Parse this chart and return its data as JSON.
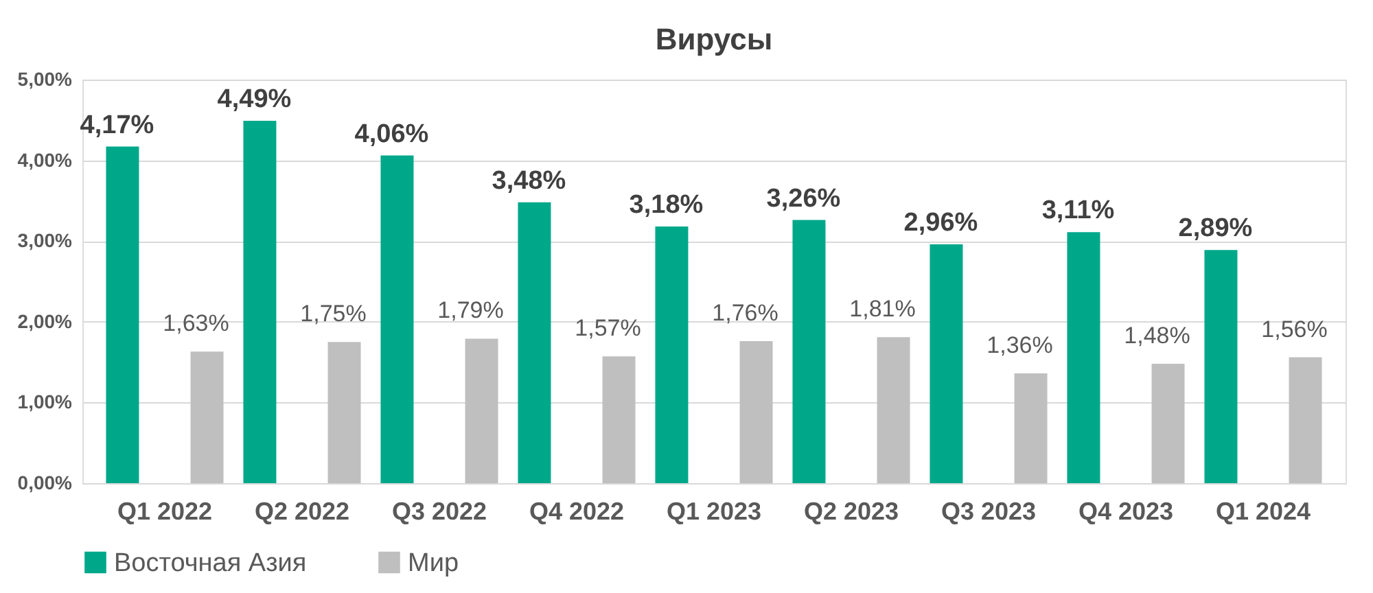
{
  "chart_data": {
    "type": "bar",
    "title": "Вирусы",
    "categories": [
      "Q1 2022",
      "Q2 2022",
      "Q3 2022",
      "Q4 2022",
      "Q1 2023",
      "Q2 2023",
      "Q3 2023",
      "Q4 2023",
      "Q1 2024"
    ],
    "series": [
      {
        "name": "Восточная Азия",
        "color": "#00a88a",
        "values": [
          4.17,
          4.49,
          4.06,
          3.48,
          3.18,
          3.26,
          2.96,
          3.11,
          2.89
        ],
        "value_labels": [
          "4,17%",
          "4,49%",
          "4,06%",
          "3,48%",
          "3,18%",
          "3,26%",
          "2,96%",
          "3,11%",
          "2,89%"
        ]
      },
      {
        "name": "Мир",
        "color": "#bfbfbf",
        "values": [
          1.63,
          1.75,
          1.79,
          1.57,
          1.76,
          1.81,
          1.36,
          1.48,
          1.56
        ],
        "value_labels": [
          "1,63%",
          "1,75%",
          "1,79%",
          "1,57%",
          "1,76%",
          "1,81%",
          "1,36%",
          "1,48%",
          "1,56%"
        ]
      }
    ],
    "ylim": [
      0,
      5
    ],
    "yticks": [
      {
        "value": 0,
        "label": "0,00%"
      },
      {
        "value": 1,
        "label": "1,00%"
      },
      {
        "value": 2,
        "label": "2,00%"
      },
      {
        "value": 3,
        "label": "3,00%"
      },
      {
        "value": 4,
        "label": "4,00%"
      },
      {
        "value": 5,
        "label": "5,00%"
      }
    ],
    "grid": "y",
    "legend": "bottom"
  }
}
